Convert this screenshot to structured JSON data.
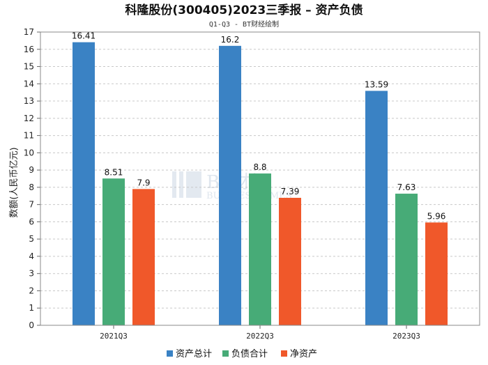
{
  "chart_data": {
    "type": "bar",
    "title": "科隆股份(300405)2023三季报 – 资产负债",
    "subtitle": "Q1-Q3 - BT财经绘制",
    "ylabel": "数额(人民币亿元)",
    "xlabel": "",
    "ylim": [
      0,
      17
    ],
    "ytick_step": 1,
    "grid": true,
    "legend_position": "bottom",
    "categories": [
      "2021Q3",
      "2022Q3",
      "2023Q3"
    ],
    "series": [
      {
        "name": "资产总计",
        "color": "#3a82c4",
        "values": [
          16.41,
          16.2,
          13.59
        ],
        "labels": [
          "16.41",
          "16.2",
          "13.59"
        ]
      },
      {
        "name": "负债合计",
        "color": "#47ab77",
        "values": [
          8.51,
          8.8,
          7.63
        ],
        "labels": [
          "8.51",
          "8.8",
          "7.63"
        ]
      },
      {
        "name": "净资产",
        "color": "#f0582a",
        "values": [
          7.9,
          7.39,
          5.96
        ],
        "labels": [
          "7.9",
          "7.39",
          "5.96"
        ]
      }
    ]
  },
  "watermark": {
    "text": "BT财经",
    "subtext": "BUSINESS TIMES"
  }
}
